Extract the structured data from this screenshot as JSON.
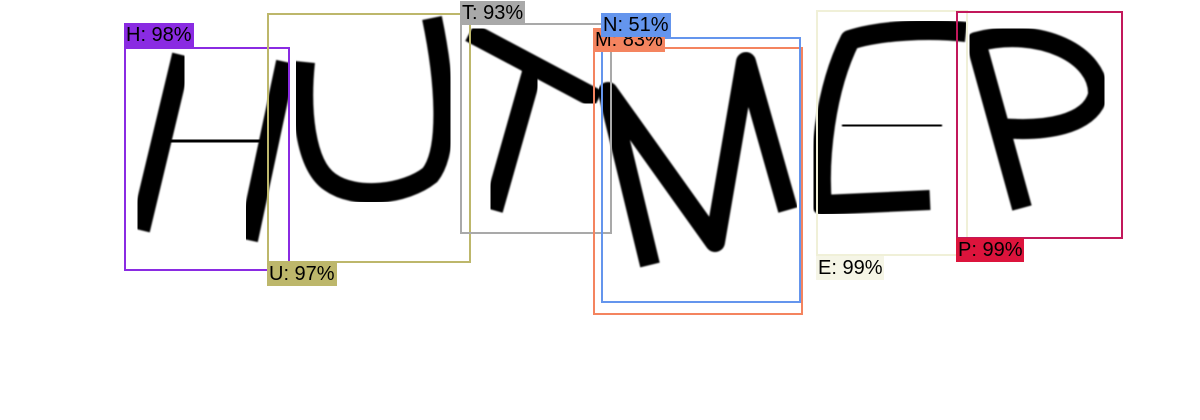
{
  "detections": [
    {
      "id": "h",
      "label": "H: 98%",
      "color": "#8a2be2",
      "label_bg": "#8a2be2"
    },
    {
      "id": "u",
      "label": "U: 97%",
      "color": "#bdb76b",
      "label_bg": "#bdb76b"
    },
    {
      "id": "t",
      "label": "T: 93%",
      "color": "#a9a9a9",
      "label_bg": "#a9a9a9"
    },
    {
      "id": "m",
      "label": "M: 83%",
      "color": "#f4845f",
      "label_bg": "#f4845f"
    },
    {
      "id": "n",
      "label": "N: 51%",
      "color": "#6495ed",
      "label_bg": "#6495ed"
    },
    {
      "id": "e",
      "label": "E: 99%",
      "color": "#f0f0d8",
      "label_bg": "#f5f5e6"
    },
    {
      "id": "p",
      "label": "P: 99%",
      "color": "#c2185b",
      "label_bg": "#dc143c"
    }
  ]
}
